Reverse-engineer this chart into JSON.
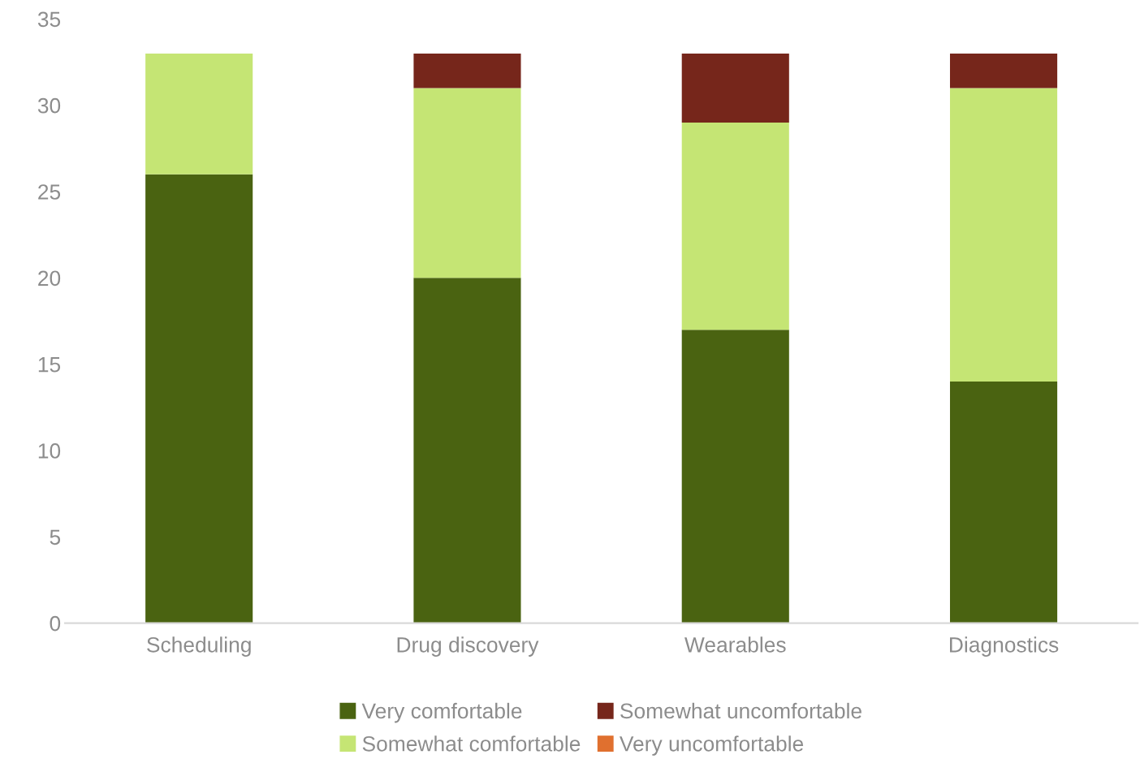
{
  "chart_data": {
    "type": "bar",
    "stacked": true,
    "categories": [
      "Scheduling",
      "Drug discovery",
      "Wearables",
      "Diagnostics"
    ],
    "series": [
      {
        "name": "Very comfortable",
        "color": "#4a6311",
        "values": [
          26,
          20,
          17,
          14
        ]
      },
      {
        "name": "Somewhat comfortable",
        "color": "#c5e574",
        "values": [
          7,
          11,
          12,
          17
        ]
      },
      {
        "name": "Somewhat uncomfortable",
        "color": "#76261b",
        "values": [
          0,
          2,
          4,
          2
        ]
      },
      {
        "name": "Very uncomfortable",
        "color": "#e0702f",
        "values": [
          0,
          0,
          0,
          0
        ]
      }
    ],
    "ylim": [
      0,
      35
    ],
    "yticks": [
      0,
      5,
      10,
      15,
      20,
      25,
      30,
      35
    ],
    "grid": false,
    "legend": "bottom"
  }
}
